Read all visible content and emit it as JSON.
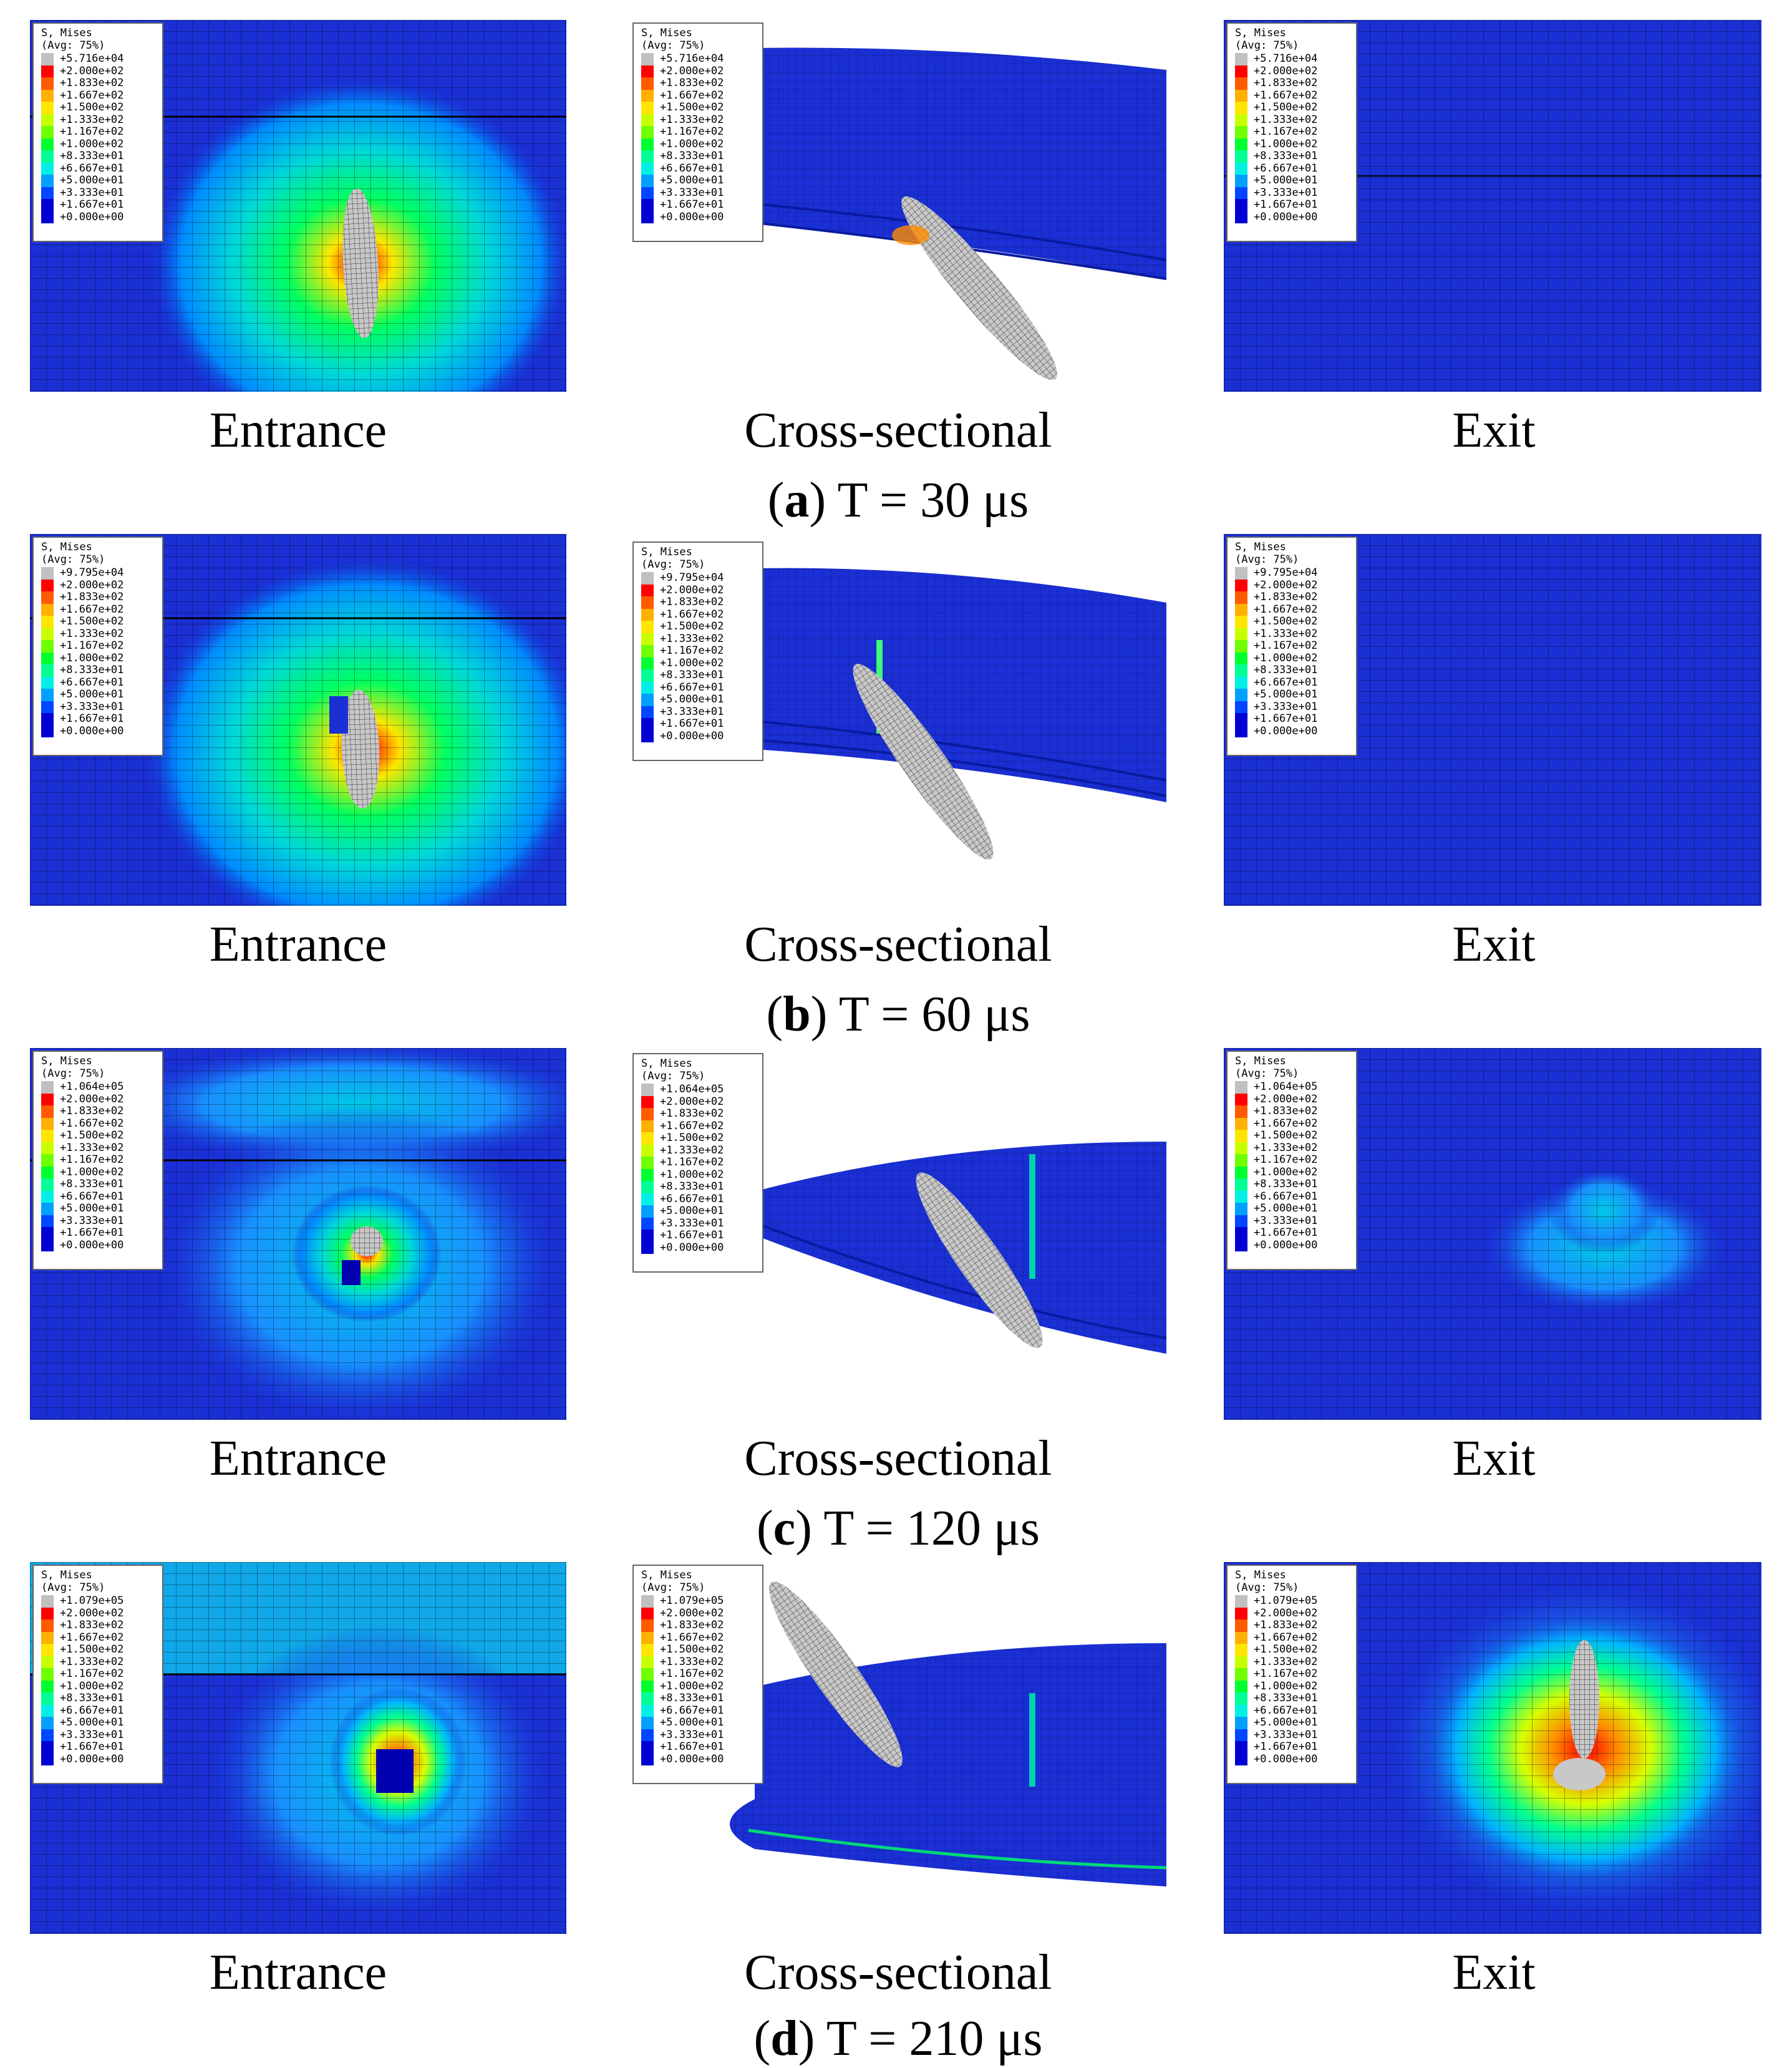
{
  "column_labels": {
    "entrance": "Entrance",
    "cross": "Cross-sectional",
    "exit": "Exit"
  },
  "legend": {
    "title_1": "S, Mises",
    "title_2": "(Avg: 75%)",
    "common_values": [
      "+2.000e+02",
      "+1.833e+02",
      "+1.667e+02",
      "+1.500e+02",
      "+1.333e+02",
      "+1.167e+02",
      "+1.000e+02",
      "+8.333e+01",
      "+6.667e+01",
      "+5.000e+01",
      "+3.333e+01",
      "+1.667e+01",
      "+0.000e+00"
    ],
    "colors": [
      "#c0c0c0",
      "#ff0000",
      "#ff5a00",
      "#ffb000",
      "#ffe600",
      "#c8ff00",
      "#6eff00",
      "#00ff30",
      "#00ff96",
      "#00f0e6",
      "#00a0ff",
      "#0046ff",
      "#0000d2"
    ]
  },
  "rows": [
    {
      "letter": "a",
      "caption": ") T = 30 μs",
      "max_value": "+5.716e+04"
    },
    {
      "letter": "b",
      "caption": ") T = 60 μs",
      "max_value": "+9.795e+04"
    },
    {
      "letter": "c",
      "caption": ") T = 120 μs",
      "max_value": "+1.064e+05"
    },
    {
      "letter": "d",
      "caption": ") T = 210 μs",
      "max_value": "+1.079e+05"
    }
  ]
}
